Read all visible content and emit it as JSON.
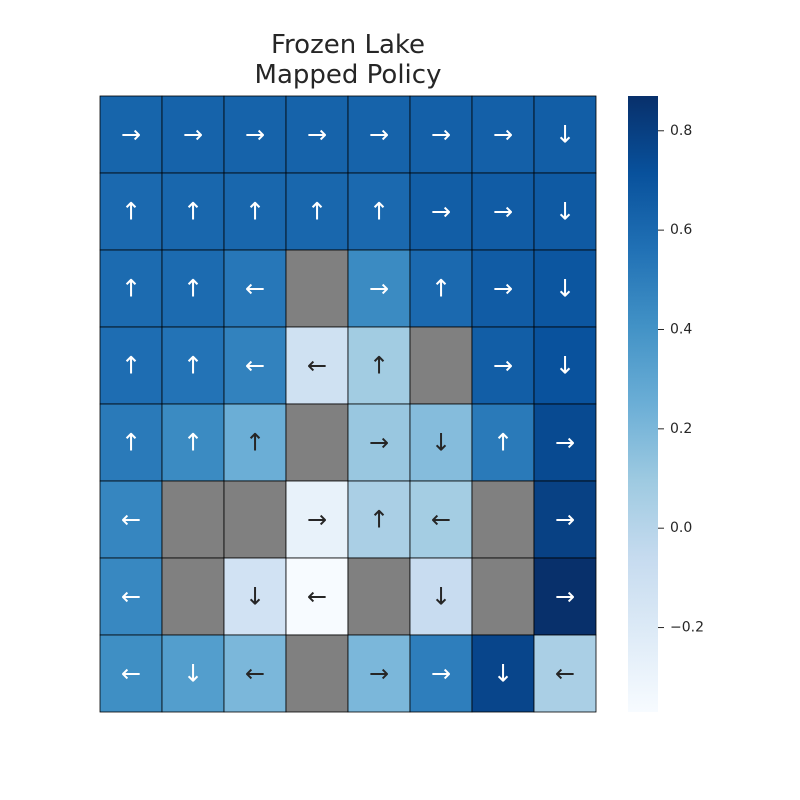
{
  "chart_data": {
    "type": "heatmap",
    "title_lines": [
      "Frozen Lake",
      "Mapped Policy"
    ],
    "rows": 8,
    "cols": 8,
    "values": [
      [
        0.62,
        0.63,
        0.63,
        0.63,
        0.63,
        0.64,
        0.64,
        0.65
      ],
      [
        0.6,
        0.61,
        0.61,
        0.61,
        0.6,
        0.65,
        0.66,
        0.67
      ],
      [
        0.59,
        0.59,
        0.53,
        null,
        0.44,
        0.6,
        0.66,
        0.69
      ],
      [
        0.58,
        0.55,
        0.48,
        -0.12,
        0.08,
        null,
        0.65,
        0.71
      ],
      [
        0.52,
        0.44,
        0.25,
        null,
        0.11,
        0.17,
        0.52,
        0.75
      ],
      [
        0.46,
        null,
        null,
        -0.28,
        0.05,
        0.07,
        null,
        0.79
      ],
      [
        0.45,
        null,
        -0.13,
        -0.37,
        null,
        -0.07,
        null,
        0.87
      ],
      [
        0.42,
        0.34,
        0.2,
        null,
        0.2,
        0.5,
        0.77,
        0.05
      ]
    ],
    "arrows": [
      [
        "→",
        "→",
        "→",
        "→",
        "→",
        "→",
        "→",
        "↓"
      ],
      [
        "↑",
        "↑",
        "↑",
        "↑",
        "↑",
        "→",
        "→",
        "↓"
      ],
      [
        "↑",
        "↑",
        "←",
        "",
        "→",
        "↑",
        "→",
        "↓"
      ],
      [
        "↑",
        "↑",
        "←",
        "←",
        "↑",
        "",
        "→",
        "↓"
      ],
      [
        "↑",
        "↑",
        "↑",
        "",
        "→",
        "↓",
        "↑",
        "→"
      ],
      [
        "←",
        "",
        "",
        "→",
        "↑",
        "←",
        "",
        "→"
      ],
      [
        "←",
        "",
        "↓",
        "←",
        "",
        "↓",
        "",
        "→"
      ],
      [
        "←",
        "↓",
        "←",
        "",
        "→",
        "→",
        "↓",
        "←"
      ]
    ],
    "hole_color": "#808080",
    "colormap": "Blues",
    "vmin": -0.37,
    "vmax": 0.87,
    "colorbar_ticks": [
      {
        "value": 0.8,
        "label": "0.8"
      },
      {
        "value": 0.6,
        "label": "0.6"
      },
      {
        "value": 0.4,
        "label": "0.4"
      },
      {
        "value": 0.2,
        "label": "0.2"
      },
      {
        "value": 0.0,
        "label": "0.0"
      },
      {
        "value": -0.2,
        "label": "−0.2"
      }
    ],
    "grid": true,
    "legend": "colorbar-right"
  }
}
